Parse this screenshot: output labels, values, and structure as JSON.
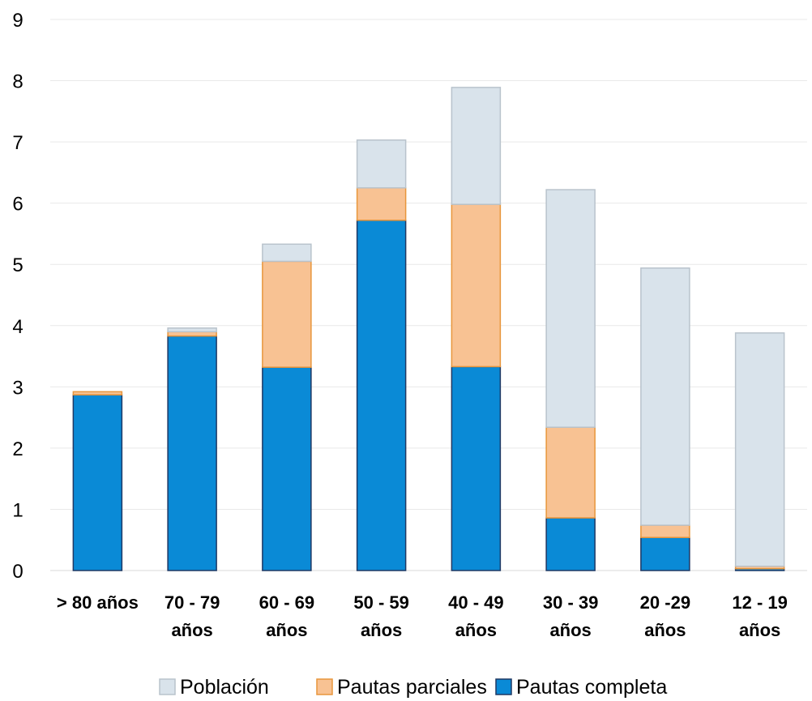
{
  "chart_data": {
    "type": "bar",
    "stacked": true,
    "categories": [
      [
        "> 80 años"
      ],
      [
        "70 - 79",
        "años"
      ],
      [
        "60 - 69",
        "años"
      ],
      [
        "50 - 59",
        "años"
      ],
      [
        "40 - 49",
        "años"
      ],
      [
        "30 - 39",
        "años"
      ],
      [
        "20 -29",
        "años"
      ],
      [
        "12 - 19",
        "años"
      ]
    ],
    "series": [
      {
        "name": "Pautas completa",
        "color": "#0A8AD6",
        "stroke": "#1F3864",
        "values": [
          2.87,
          3.83,
          3.32,
          5.72,
          3.33,
          0.86,
          0.54,
          0.03
        ]
      },
      {
        "name": "Pautas parciales",
        "color": "#F8C293",
        "stroke": "#E8963C",
        "values": [
          0.05,
          0.07,
          1.73,
          0.53,
          2.65,
          1.48,
          0.2,
          0.04
        ]
      },
      {
        "name": "Población",
        "color": "#D9E3EB",
        "stroke": "#B9C3CC",
        "values": [
          0.0,
          0.06,
          0.28,
          0.78,
          1.91,
          3.88,
          4.2,
          3.81
        ]
      }
    ],
    "legend_order": [
      "Población",
      "Pautas parciales",
      "Pautas completa"
    ],
    "ylim": [
      0,
      9
    ],
    "yticks": [
      "0",
      "1",
      "2",
      "3",
      "4",
      "5",
      "6",
      "7",
      "8",
      "9"
    ],
    "grid": true,
    "legend_position": "bottom"
  }
}
